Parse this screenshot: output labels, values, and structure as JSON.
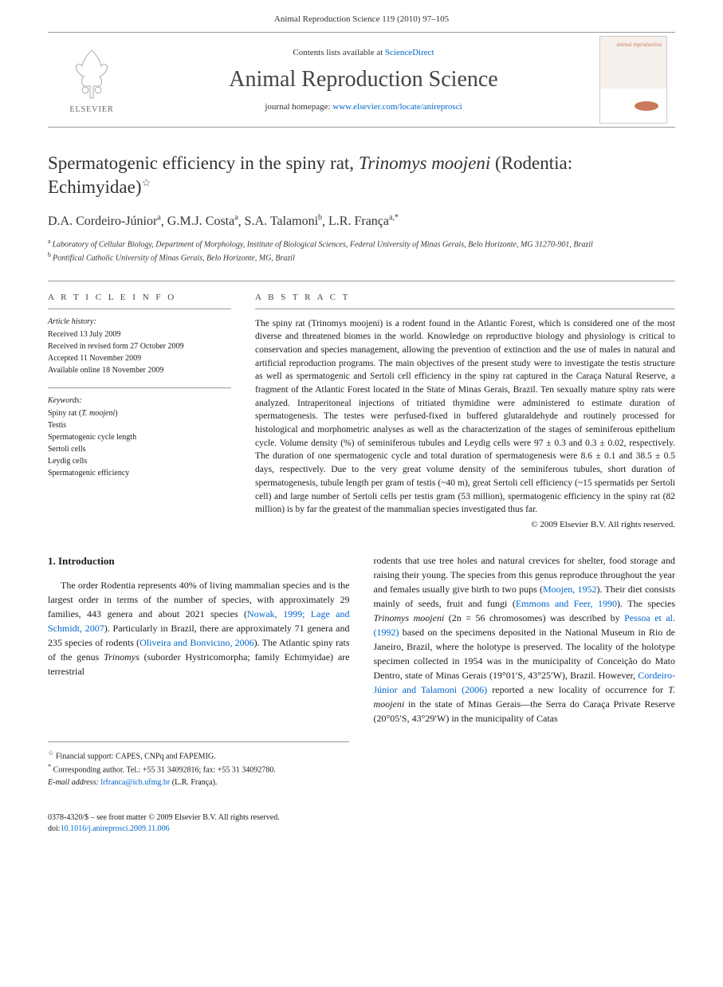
{
  "header": {
    "running": "Animal Reproduction Science 119 (2010) 97–105"
  },
  "banner": {
    "publisher": "ELSEVIER",
    "contents_prefix": "Contents lists available at ",
    "contents_link": "ScienceDirect",
    "journal": "Animal Reproduction Science",
    "homepage_prefix": "journal homepage: ",
    "homepage_link": "www.elsevier.com/locate/anireprosci",
    "cover_label": "animal reproduction"
  },
  "article": {
    "title_pre": "Spermatogenic efficiency in the spiny rat, ",
    "title_species": "Trinomys moojeni",
    "title_post": " (Rodentia: Echimyidae)",
    "title_note_marker": "☆",
    "authors_html": "D.A. Cordeiro-Júnior",
    "authors": [
      {
        "name": "D.A. Cordeiro-Júnior",
        "aff": "a"
      },
      {
        "name": "G.M.J. Costa",
        "aff": "a"
      },
      {
        "name": "S.A. Talamoni",
        "aff": "b"
      },
      {
        "name": "L.R. França",
        "aff": "a,*"
      }
    ],
    "affiliations": [
      {
        "marker": "a",
        "text": "Laboratory of Cellular Biology, Department of Morphology, Institute of Biological Sciences, Federal University of Minas Gerais, Belo Horizonte, MG 31270-901, Brazil"
      },
      {
        "marker": "b",
        "text": "Pontifical Catholic University of Minas Gerais, Belo Horizonte, MG, Brazil"
      }
    ]
  },
  "info": {
    "heading": "A R T I C L E   I N F O",
    "history_title": "Article history:",
    "history": [
      "Received 13 July 2009",
      "Received in revised form 27 October 2009",
      "Accepted 11 November 2009",
      "Available online 18 November 2009"
    ],
    "keywords_title": "Keywords:",
    "keywords": [
      "Spiny rat (T. moojeni)",
      "Testis",
      "Spermatogenic cycle length",
      "Sertoli cells",
      "Leydig cells",
      "Spermatogenic efficiency"
    ]
  },
  "abstract": {
    "heading": "A B S T R A C T",
    "text": "The spiny rat (Trinomys moojeni) is a rodent found in the Atlantic Forest, which is considered one of the most diverse and threatened biomes in the world. Knowledge on reproductive biology and physiology is critical to conservation and species management, allowing the prevention of extinction and the use of males in natural and artificial reproduction programs. The main objectives of the present study were to investigate the testis structure as well as spermatogenic and Sertoli cell efficiency in the spiny rat captured in the Caraça Natural Reserve, a fragment of the Atlantic Forest located in the State of Minas Gerais, Brazil. Ten sexually mature spiny rats were analyzed. Intraperitoneal injections of tritiated thymidine were administered to estimate duration of spermatogenesis. The testes were perfused-fixed in buffered glutaraldehyde and routinely processed for histological and morphometric analyses as well as the characterization of the stages of seminiferous epithelium cycle. Volume density (%) of seminiferous tubules and Leydig cells were 97 ± 0.3 and 0.3 ± 0.02, respectively. The duration of one spermatogenic cycle and total duration of spermatogenesis were 8.6 ± 0.1 and 38.5 ± 0.5 days, respectively. Due to the very great volume density of the seminiferous tubules, short duration of spermatogenesis, tubule length per gram of testis (~40 m), great Sertoli cell efficiency (~15 spermatids per Sertoli cell) and large number of Sertoli cells per testis gram (53 million), spermatogenic efficiency in the spiny rat (82 million) is by far the greatest of the mammalian species investigated thus far.",
    "copyright": "© 2009 Elsevier B.V. All rights reserved."
  },
  "body": {
    "section_number": "1.",
    "section_title": "Introduction",
    "col1_p1_a": "The order Rodentia represents 40% of living mammalian species and is the largest order in terms of the number of species, with approximately 29 families, 443 genera and about 2021 species (",
    "col1_ref1": "Nowak, 1999; Lage and Schmidt, 2007",
    "col1_p1_b": "). Particularly in Brazil, there are approximately 71 genera and 235 species of rodents (",
    "col1_ref2": "Oliveira and Bonvicino, 2006",
    "col1_p1_c": "). The Atlantic spiny rats of the genus ",
    "col1_genus": "Trinomys",
    "col1_p1_d": " (suborder Hystricomorpha; family Echimyidae) are terrestrial",
    "col2_p1_a": "rodents that use tree holes and natural crevices for shelter, food storage and raising their young. The species from this genus reproduce throughout the year and females usually give birth to two pups (",
    "col2_ref1": "Moojen, 1952",
    "col2_p1_b": "). Their diet consists mainly of seeds, fruit and fungi (",
    "col2_ref2": "Emmons and Feer, 1990",
    "col2_p1_c": "). The species ",
    "col2_species1": "Trinomys moojeni",
    "col2_p1_d": " (2n = 56 chromosomes) was described by ",
    "col2_ref3": "Pessoa et al. (1992)",
    "col2_p1_e": " based on the specimens deposited in the National Museum in Rio de Janeiro, Brazil, where the holotype is preserved. The locality of the holotype specimen collected in 1954 was in the municipality of Conceição do Mato Dentro, state of Minas Gerais (19°01′S, 43°25′W), Brazil. However, ",
    "col2_ref4": "Cordeiro-Júnior and Talamoni (2006)",
    "col2_p1_f": " reported a new locality of occurrence for ",
    "col2_species2": "T. moojeni",
    "col2_p1_g": " in the state of Minas Gerais—the Serra do Caraça Private Reserve (20°05′S, 43°29′W) in the municipality of Catas"
  },
  "footnotes": {
    "funding_marker": "☆",
    "funding": "Financial support: CAPES, CNPq and FAPEMIG.",
    "corr_marker": "*",
    "corr_label": "Corresponding author. Tel.: +55 31 34092816; fax: +55 31 34092780.",
    "email_label": "E-mail address:",
    "email": "lrfranca@icb.ufmg.br",
    "email_who": "(L.R. França)."
  },
  "footer": {
    "issn": "0378-4320/$ – see front matter © 2009 Elsevier B.V. All rights reserved.",
    "doi_label": "doi:",
    "doi": "10.1016/j.anireprosci.2009.11.006"
  }
}
